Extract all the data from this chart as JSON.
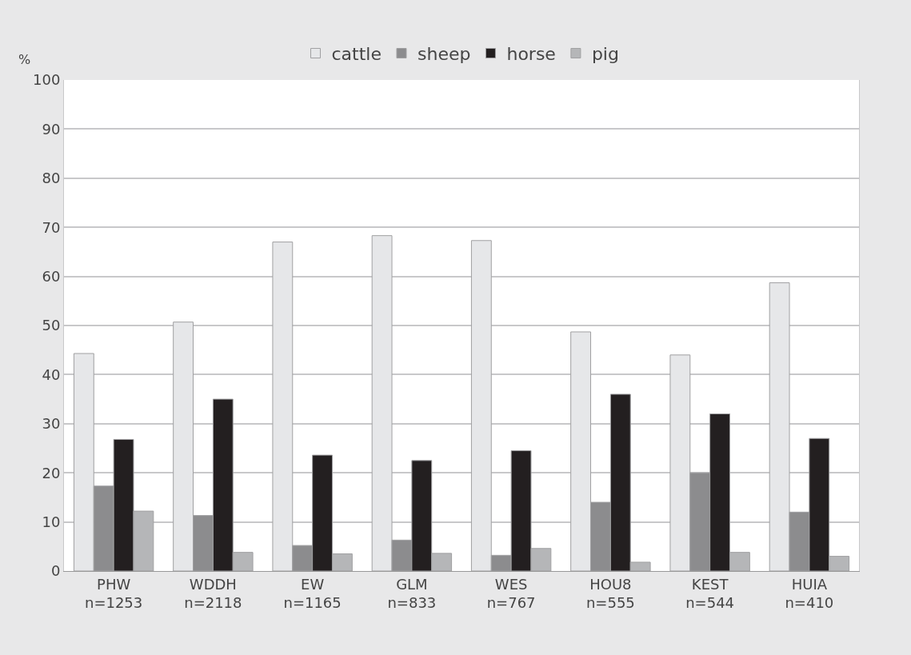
{
  "chart_data": {
    "type": "bar",
    "ylabel": "%",
    "categories": [
      "PHW\nn=1253",
      "WDDH\nn=2118",
      "EW\nn=1165",
      "GLM\nn=833",
      "WES\nn=767",
      "HOU8\nn=555",
      "KEST\nn=544",
      "HUIA\nn=410"
    ],
    "series": [
      {
        "name": "cattle",
        "color": "#e6e7e9",
        "values": [
          44.3,
          50.7,
          67,
          68.3,
          67.3,
          48.7,
          44,
          58.7
        ]
      },
      {
        "name": "sheep",
        "color": "#8c8c8e",
        "values": [
          17.3,
          11.3,
          5.2,
          6.3,
          3.2,
          14,
          20,
          12
        ]
      },
      {
        "name": "horse",
        "color": "#231f20",
        "values": [
          26.8,
          35,
          23.6,
          22.5,
          24.5,
          36,
          32,
          27
        ]
      },
      {
        "name": "pig",
        "color": "#b5b6b8",
        "values": [
          12.2,
          3.8,
          3.5,
          3.6,
          4.6,
          1.8,
          3.8,
          3
        ]
      }
    ],
    "ylim": [
      0,
      100
    ],
    "yticks": [
      0,
      10,
      20,
      30,
      40,
      50,
      60,
      70,
      80,
      90,
      100
    ],
    "grid": "y",
    "legend": "top"
  }
}
